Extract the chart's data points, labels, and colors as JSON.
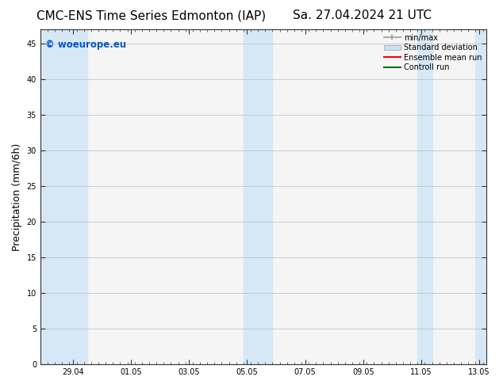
{
  "title_left": "CMC-ENS Time Series Edmonton (IAP)",
  "title_right": "Sa. 27.04.2024 21 UTC",
  "ylabel": "Precipitation (mm/6h)",
  "ylim": [
    0,
    47
  ],
  "yticks": [
    0,
    5,
    10,
    15,
    20,
    25,
    30,
    35,
    40,
    45
  ],
  "xtick_labels": [
    "29.04",
    "01.05",
    "03.05",
    "05.05",
    "07.05",
    "09.05",
    "11.05",
    "13.05"
  ],
  "watermark": "© woeurope.eu",
  "watermark_color": "#0055cc",
  "legend_items": [
    {
      "label": "min/max",
      "color": "#aaaaaa",
      "style": "errorbar"
    },
    {
      "label": "Standard deviation",
      "color": "#cce0f0",
      "style": "box"
    },
    {
      "label": "Ensemble mean run",
      "color": "#ff0000",
      "style": "line"
    },
    {
      "label": "Controll run",
      "color": "#008000",
      "style": "line"
    }
  ],
  "shaded_color": "#d6e8f5",
  "bg_color": "#ffffff",
  "plot_bg_color": "#f5f5f5",
  "tick_fontsize": 7,
  "label_fontsize": 9,
  "title_fontsize": 11,
  "x_min": 0.0,
  "x_max": 15.375,
  "shaded_bands": [
    [
      0.0,
      1.625
    ],
    [
      1.625,
      2.125
    ],
    [
      6.625,
      7.125
    ],
    [
      7.125,
      7.625
    ],
    [
      13.125,
      13.625
    ],
    [
      14.625,
      15.375
    ]
  ]
}
